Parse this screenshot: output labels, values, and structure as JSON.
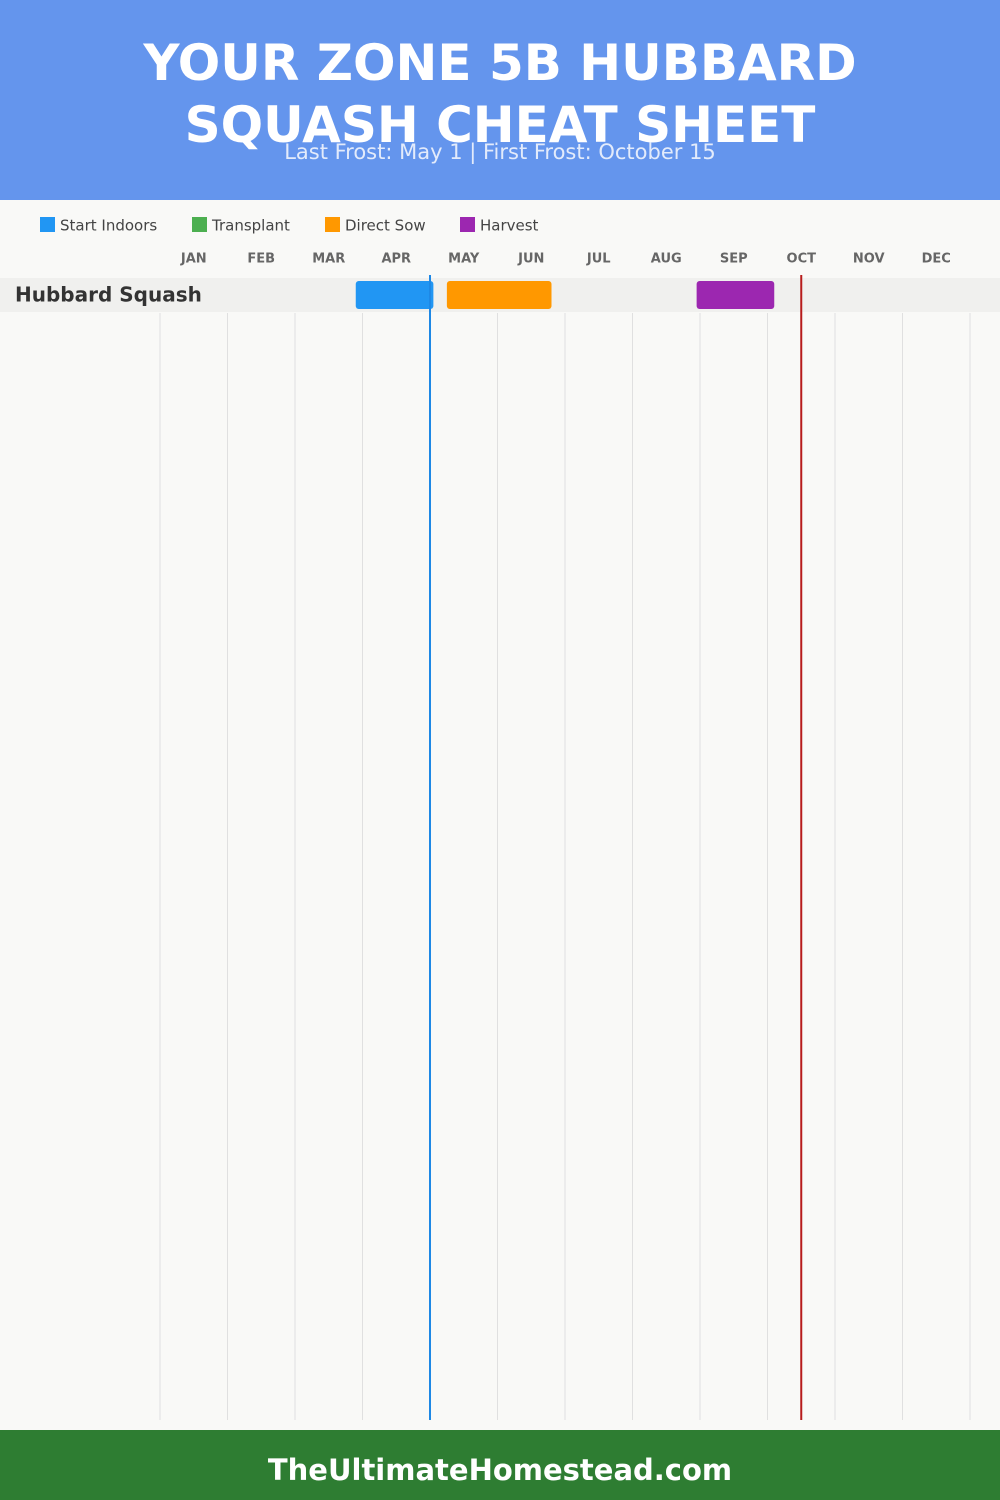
{
  "chart_data": {
    "type": "gantt",
    "title": "YOUR ZONE 5B HUBBARD SQUASH CHEAT SHEET",
    "subtitle": "Last Frost: May 1 | First Frost: October 15",
    "categories": [
      "Hubbard Squash"
    ],
    "series": [
      {
        "name": "Start Indoors",
        "color": "#2196f3",
        "start": [
          2.9
        ],
        "end": [
          4.05
        ]
      },
      {
        "name": "Transplant",
        "color": "#4caf50",
        "start": [
          null
        ],
        "end": [
          null
        ]
      },
      {
        "name": "Direct Sow",
        "color": "#ff9800",
        "start": [
          4.25
        ],
        "end": [
          5.8
        ]
      },
      {
        "name": "Harvest",
        "color": "#9c27b0",
        "start": [
          7.95
        ],
        "end": [
          9.1
        ]
      }
    ],
    "markers": [
      {
        "value": 4.0,
        "color": "#1e88e5"
      },
      {
        "value": 9.5,
        "color": "#b71c1c"
      }
    ],
    "xlim": [
      0,
      12
    ],
    "xticks": [
      {
        "value": 0,
        "label": "JAN"
      },
      {
        "value": 1,
        "label": "FEB"
      },
      {
        "value": 2,
        "label": "MAR"
      },
      {
        "value": 3,
        "label": "APR"
      },
      {
        "value": 4,
        "label": "MAY"
      },
      {
        "value": 5,
        "label": "JUN"
      },
      {
        "value": 6,
        "label": "JUL"
      },
      {
        "value": 7,
        "label": "AUG"
      },
      {
        "value": 8,
        "label": "SEP"
      },
      {
        "value": 9,
        "label": "OCT"
      },
      {
        "value": 10,
        "label": "NOV"
      },
      {
        "value": 11,
        "label": "DEC"
      }
    ],
    "grid": true,
    "footer": "TheUltimateHomestead.com"
  }
}
